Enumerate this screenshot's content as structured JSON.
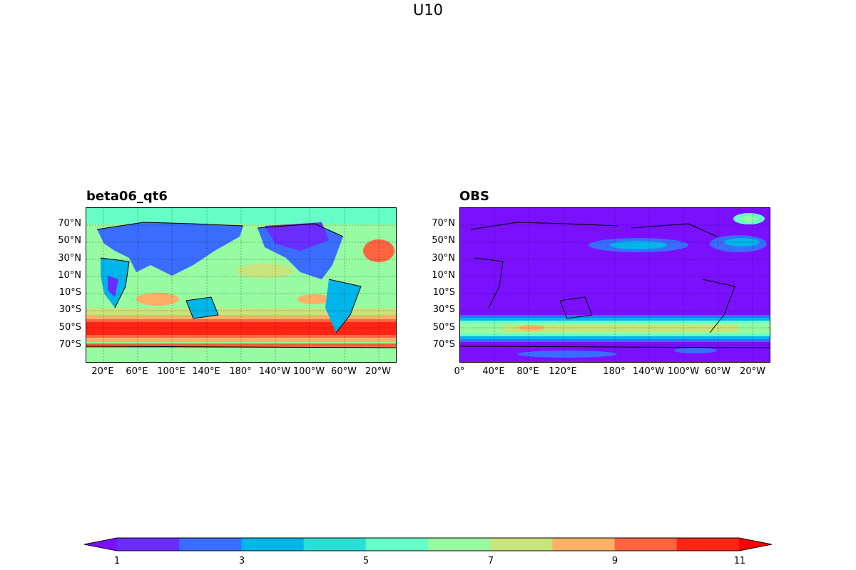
{
  "figure": {
    "title": "U10"
  },
  "panels": [
    {
      "title": "beta06_qt6",
      "lat_labels": [
        "70°N",
        "50°N",
        "30°N",
        "10°N",
        "10°S",
        "30°S",
        "50°S",
        "70°S"
      ],
      "lon_labels": [
        "20°E",
        "60°E",
        "100°E",
        "140°E",
        "180°",
        "140°W",
        "100°W",
        "60°W",
        "20°W"
      ]
    },
    {
      "title": "OBS",
      "lat_labels": [
        "70°N",
        "50°N",
        "30°N",
        "10°N",
        "10°S",
        "30°S",
        "50°S",
        "70°S"
      ],
      "lon_labels": [
        "0°",
        "40°E",
        "80°E",
        "120°E",
        "180°",
        "140°W",
        "100°W",
        "60°W",
        "20°W"
      ]
    }
  ],
  "colorbar": {
    "ticks": [
      "1",
      "3",
      "5",
      "7",
      "9",
      "11"
    ],
    "levels": [
      1,
      2,
      3,
      4,
      5,
      6,
      7,
      8,
      9,
      10,
      11
    ],
    "extend": "both",
    "colors": [
      "#7a10ff",
      "#6a2cff",
      "#3a6dff",
      "#00b5ea",
      "#2cdfd4",
      "#66ffc8",
      "#96fba1",
      "#c8e47c",
      "#ffb066",
      "#ff6440",
      "#ff2414",
      "#ff0000"
    ]
  }
}
